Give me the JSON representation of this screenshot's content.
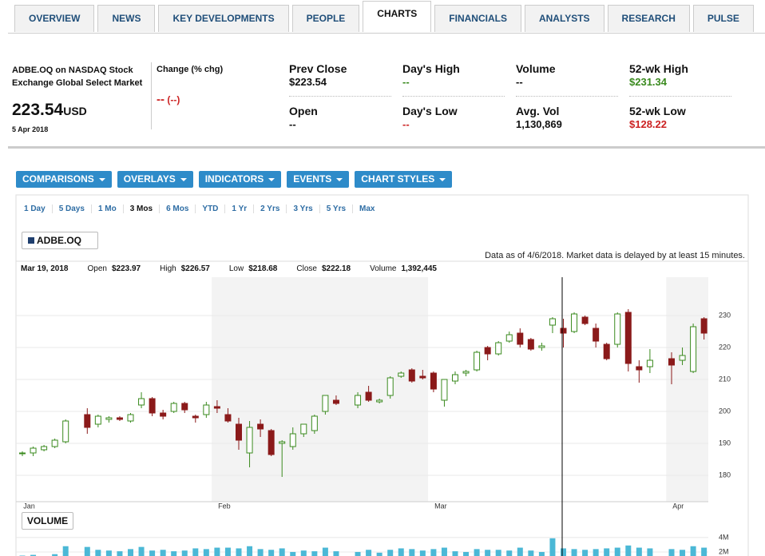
{
  "header": {
    "tabs": [
      "OVERVIEW",
      "NEWS",
      "KEY DEVELOPMENTS",
      "PEOPLE",
      "CHARTS",
      "FINANCIALS",
      "ANALYSTS",
      "RESEARCH",
      "PULSE"
    ],
    "active": 4
  },
  "quote": {
    "name": "ADBE.OQ on NASDAQ Stock Exchange Global Select Market",
    "price": "223.54",
    "currency": "USD",
    "date": "5 Apr 2018",
    "change_label": "Change (% chg)",
    "change": "--",
    "change_pct": "(--)",
    "fields": [
      {
        "label": "Prev Close",
        "value": "$223.54"
      },
      {
        "label": "Open",
        "value": "--"
      },
      {
        "label": "Day's High",
        "value": "--"
      },
      {
        "label": "Day's Low",
        "value": "--"
      },
      {
        "label": "Volume",
        "value": "--"
      },
      {
        "label": "Avg. Vol",
        "value": "1,130,869"
      },
      {
        "label": "52-wk High",
        "value": "$231.34"
      },
      {
        "label": "52-wk Low",
        "value": "$128.22"
      }
    ]
  },
  "toolbar": {
    "buttons": [
      "COMPARISONS",
      "OVERLAYS",
      "INDICATORS",
      "EVENTS",
      "CHART STYLES"
    ],
    "ranges": [
      "1 Day",
      "5 Days",
      "1 Mo",
      "3 Mos",
      "6 Mos",
      "YTD",
      "1 Yr",
      "2 Yrs",
      "3 Yrs",
      "5 Yrs",
      "Max"
    ],
    "active_range": 3
  },
  "chart_data": [
    {
      "type": "candlestick",
      "name": "ADBE.OQ",
      "color": "#1f3f6e",
      "up_color": "#3a8a1e",
      "down_color": "#8b1a1a",
      "note": "Data as of 4/6/2018. Market data is delayed by at least 15 minutes.",
      "info": {
        "date": "Mar 19, 2018",
        "items": [
          {
            "label": "Open",
            "value": "$223.97"
          },
          {
            "label": "High",
            "value": "$226.57"
          },
          {
            "label": "Low",
            "value": "$218.68"
          },
          {
            "label": "Close",
            "value": "$222.18"
          },
          {
            "label": "Volume",
            "value": "1,392,445"
          }
        ]
      },
      "categories": [
        "Jan",
        null,
        null,
        null,
        null,
        null,
        null,
        null,
        null,
        null,
        null,
        null,
        null,
        null,
        null,
        null,
        null,
        null,
        "Feb",
        null,
        null,
        null,
        null,
        null,
        null,
        null,
        null,
        null,
        null,
        null,
        null,
        null,
        null,
        null,
        null,
        null,
        null,
        null,
        "Mar",
        null,
        null,
        null,
        null,
        null,
        null,
        null,
        null,
        null,
        null,
        null,
        null,
        null,
        null,
        null,
        null,
        null,
        null,
        null,
        null,
        null,
        "Apr",
        null,
        null,
        null
      ],
      "open": [
        187,
        187,
        188,
        189,
        190.5,
        null,
        199,
        196,
        197.5,
        198,
        197,
        202,
        204,
        199.5,
        200,
        202.5,
        198.5,
        199,
        201.5,
        199,
        196,
        187,
        196,
        194,
        190,
        189,
        193,
        194,
        200,
        203.5,
        null,
        202,
        206,
        203,
        205,
        211,
        213,
        211,
        212,
        203.5,
        209.5,
        212,
        213,
        220,
        218,
        222,
        224.5,
        222.5,
        220,
        227,
        226,
        225,
        229.5,
        226,
        221,
        221,
        231,
        214,
        214,
        null,
        216.5,
        216,
        212.5,
        229
      ],
      "high": [
        187.5,
        189,
        189.5,
        191.5,
        197.5,
        null,
        201,
        199,
        198.5,
        198.5,
        199.5,
        206,
        204.5,
        200.5,
        203,
        203,
        199,
        203,
        203.5,
        201,
        198,
        197,
        197.5,
        194.5,
        191,
        195,
        196,
        199,
        205,
        205,
        null,
        206,
        208,
        204,
        211,
        212.5,
        213.5,
        213,
        212.5,
        210,
        212.5,
        213,
        219,
        220.5,
        222,
        225,
        226,
        223,
        221.5,
        229.5,
        229,
        231,
        230,
        227.5,
        221.5,
        231,
        232,
        216,
        219.5,
        null,
        218.5,
        220,
        227.5,
        229.5
      ],
      "low": [
        186,
        186,
        187.5,
        188.5,
        190,
        null,
        193,
        195,
        196.5,
        197,
        196.5,
        201,
        198.5,
        197.5,
        199.5,
        199.5,
        196.5,
        198,
        199.5,
        196.5,
        188,
        182.5,
        192,
        186,
        179.5,
        188,
        192,
        193,
        199,
        202,
        null,
        201,
        203,
        202.5,
        204,
        210.5,
        209,
        210,
        206,
        201.5,
        208.5,
        211,
        212.5,
        216,
        217.5,
        221.5,
        220,
        219,
        219,
        224.5,
        220,
        224.5,
        227,
        220,
        216,
        220,
        212.5,
        209,
        212,
        null,
        208.5,
        214.5,
        212,
        222.5
      ],
      "close": [
        187,
        188.5,
        189,
        191,
        197,
        null,
        195,
        198.5,
        198,
        197.5,
        199,
        204,
        199.5,
        198.5,
        202.5,
        200.5,
        198,
        202,
        201,
        197,
        191,
        195,
        194.5,
        186.5,
        190.5,
        193,
        196,
        198.5,
        205,
        202.5,
        null,
        205,
        203.5,
        203.5,
        210.5,
        212,
        209.5,
        210.5,
        207,
        210,
        211.5,
        212.5,
        218.5,
        218,
        221.5,
        224,
        221,
        219.5,
        220.5,
        229,
        224.5,
        230.5,
        227.5,
        222,
        216.5,
        230.5,
        215,
        213,
        216,
        null,
        214.5,
        217.5,
        226.5,
        224.5
      ],
      "ylim": [
        171.75,
        242
      ],
      "yticks": [
        180,
        190,
        200,
        210,
        220,
        230
      ],
      "grid": true
    },
    {
      "type": "bar",
      "title": "VOLUME",
      "color": "#4bb8d6",
      "values": [
        1500000,
        1600000,
        1400000,
        1700000,
        2800000,
        null,
        2700000,
        2300000,
        2200000,
        2100000,
        2400000,
        2700000,
        2200000,
        2300000,
        2100000,
        2200000,
        2500000,
        2400000,
        2600000,
        2600000,
        2500000,
        2800000,
        2400000,
        2300000,
        2500000,
        2000000,
        2200000,
        2100000,
        2600000,
        2100000,
        null,
        2000000,
        2300000,
        1900000,
        2300000,
        2500000,
        2400000,
        2200000,
        2400000,
        2600000,
        2100000,
        2000000,
        2400000,
        2300000,
        2300000,
        2200000,
        2600000,
        2200000,
        2000000,
        3900000,
        2500000,
        2400000,
        2300000,
        2400000,
        2500000,
        2600000,
        2900000,
        2600000,
        2500000,
        null,
        2400000,
        2300000,
        2800000,
        2600000
      ],
      "ylim": [
        0,
        5100000
      ],
      "yticks": [
        {
          "value": 2000000,
          "label": "2M"
        },
        {
          "value": 4000000,
          "label": "4M"
        }
      ]
    }
  ]
}
